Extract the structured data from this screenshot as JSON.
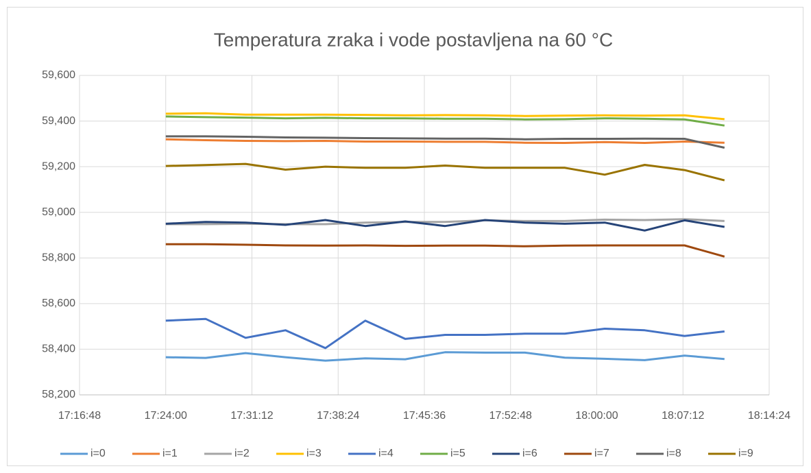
{
  "chart_data": {
    "type": "line",
    "title": "Temperatura zraka i vode postavljena na 60 °C",
    "x": [
      "17:24:00",
      "17:27:20",
      "17:30:40",
      "17:34:00",
      "17:37:20",
      "17:40:40",
      "17:44:00",
      "17:47:20",
      "17:50:40",
      "17:54:00",
      "17:57:20",
      "18:00:40",
      "18:04:00",
      "18:07:20",
      "18:10:40"
    ],
    "xlim": [
      "17:16:48",
      "18:14:24"
    ],
    "xticks": [
      "17:16:48",
      "17:24:00",
      "17:31:12",
      "17:38:24",
      "17:45:36",
      "17:52:48",
      "18:00:00",
      "18:07:12",
      "18:14:24"
    ],
    "ylim": [
      58200,
      59600
    ],
    "yticks": [
      {
        "value": 58200,
        "label": "58,200"
      },
      {
        "value": 58400,
        "label": "58,400"
      },
      {
        "value": 58600,
        "label": "58,600"
      },
      {
        "value": 58800,
        "label": "58,800"
      },
      {
        "value": 59000,
        "label": "59,000"
      },
      {
        "value": 59200,
        "label": "59,200"
      },
      {
        "value": 59400,
        "label": "59,400"
      },
      {
        "value": 59600,
        "label": "59,600"
      }
    ],
    "grid": true,
    "legend": "bottom",
    "series": [
      {
        "name": "i=0",
        "color": "#5b9bd5",
        "values": [
          58365,
          58362,
          58383,
          58365,
          58350,
          58360,
          58356,
          58387,
          58385,
          58385,
          58363,
          58358,
          58352,
          58372,
          58357
        ]
      },
      {
        "name": "i=1",
        "color": "#ed7d31",
        "values": [
          59320,
          59316,
          59313,
          59312,
          59313,
          59310,
          59310,
          59309,
          59309,
          59305,
          59304,
          59308,
          59304,
          59310,
          59305
        ]
      },
      {
        "name": "i=2",
        "color": "#a5a5a5",
        "values": [
          58948,
          58948,
          58950,
          58948,
          58948,
          58955,
          58958,
          58958,
          58965,
          58962,
          58962,
          58968,
          58966,
          58970,
          58962
        ]
      },
      {
        "name": "i=3",
        "color": "#ffc000",
        "values": [
          59432,
          59434,
          59428,
          59428,
          59428,
          59427,
          59425,
          59426,
          59425,
          59422,
          59424,
          59425,
          59424,
          59425,
          59408
        ]
      },
      {
        "name": "i=4",
        "color": "#4472c4",
        "values": [
          58525,
          58533,
          58450,
          58483,
          58405,
          58525,
          58445,
          58463,
          58463,
          58468,
          58468,
          58490,
          58483,
          58458,
          58478
        ]
      },
      {
        "name": "i=5",
        "color": "#70ad47",
        "values": [
          59420,
          59417,
          59415,
          59412,
          59414,
          59412,
          59412,
          59410,
          59410,
          59407,
          59408,
          59412,
          59410,
          59407,
          59380
        ]
      },
      {
        "name": "i=6",
        "color": "#264478",
        "values": [
          58950,
          58958,
          58955,
          58945,
          58966,
          58940,
          58960,
          58940,
          58966,
          58955,
          58950,
          58955,
          58920,
          58965,
          58936
        ]
      },
      {
        "name": "i=7",
        "color": "#9e480e",
        "values": [
          58860,
          58860,
          58858,
          58855,
          58854,
          58855,
          58853,
          58854,
          58854,
          58851,
          58854,
          58855,
          58855,
          58855,
          58806
        ]
      },
      {
        "name": "i=8",
        "color": "#636363",
        "values": [
          59333,
          59333,
          59331,
          59328,
          59327,
          59325,
          59324,
          59323,
          59323,
          59320,
          59322,
          59322,
          59323,
          59322,
          59283
        ]
      },
      {
        "name": "i=9",
        "color": "#997300",
        "values": [
          59203,
          59207,
          59212,
          59187,
          59200,
          59195,
          59195,
          59205,
          59195,
          59195,
          59195,
          59165,
          59208,
          59185,
          59140
        ]
      }
    ]
  }
}
